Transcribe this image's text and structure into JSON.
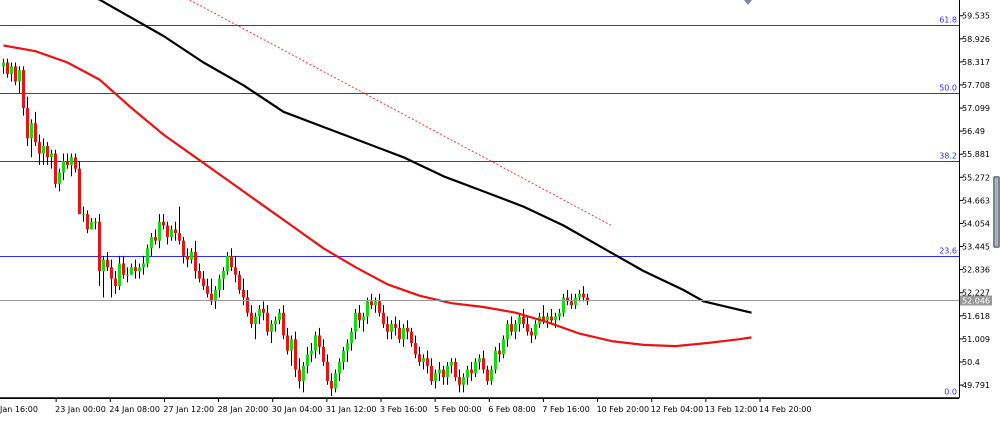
{
  "chart_data": {
    "type": "candlestick",
    "price_axis": {
      "ticks": [
        59.535,
        58.926,
        58.317,
        57.708,
        57.099,
        56.49,
        55.881,
        55.272,
        54.663,
        54.054,
        53.445,
        52.836,
        52.227,
        51.618,
        51.009,
        50.4,
        49.791
      ],
      "range": [
        49.45,
        59.95
      ],
      "current_price": 52.046,
      "current_price_label": "52.046"
    },
    "time_axis": {
      "labels": [
        "Jan 16:00",
        "23 Jan 00:00",
        "24 Jan 08:00",
        "27 Jan 12:00",
        "28 Jan 20:00",
        "30 Jan 04:00",
        "31 Jan 12:00",
        "3 Feb 16:00",
        "5 Feb 00:00",
        "6 Feb 08:00",
        "7 Feb 16:00",
        "10 Feb 20:00",
        "12 Feb 04:00",
        "13 Feb 12:00",
        "14 Feb 20:00"
      ]
    },
    "fibonacci_levels": [
      {
        "label": "61.8",
        "value": 59.3
      },
      {
        "label": "50.0",
        "value": 57.5
      },
      {
        "label": "38.2",
        "value": 55.7
      },
      {
        "label": "23.6",
        "value": 53.2
      },
      {
        "label": "0.0",
        "value": 49.47
      }
    ],
    "trendline": {
      "from_index": 43,
      "from_price": 60.15,
      "to_index": 152,
      "to_price": 54.0
    },
    "candles": [
      [
        58.2,
        58.4,
        58.0,
        58.3
      ],
      [
        58.3,
        58.4,
        57.9,
        58.0
      ],
      [
        58.0,
        58.3,
        57.8,
        58.2
      ],
      [
        58.2,
        58.3,
        57.7,
        57.8
      ],
      [
        57.8,
        58.2,
        57.5,
        58.1
      ],
      [
        58.1,
        58.2,
        56.9,
        57.1
      ],
      [
        57.1,
        57.4,
        56.1,
        56.3
      ],
      [
        56.3,
        56.8,
        55.8,
        56.7
      ],
      [
        56.7,
        57.0,
        56.1,
        56.2
      ],
      [
        56.2,
        56.4,
        55.6,
        55.9
      ],
      [
        55.9,
        56.3,
        55.6,
        56.1
      ],
      [
        56.1,
        56.2,
        55.6,
        55.8
      ],
      [
        55.8,
        56.0,
        55.5,
        55.9
      ],
      [
        55.9,
        56.0,
        55.0,
        55.1
      ],
      [
        55.1,
        55.5,
        54.9,
        55.4
      ],
      [
        55.4,
        55.9,
        55.2,
        55.7
      ],
      [
        55.7,
        55.9,
        55.5,
        55.6
      ],
      [
        55.6,
        55.9,
        55.3,
        55.8
      ],
      [
        55.8,
        55.9,
        55.4,
        55.5
      ],
      [
        55.5,
        55.7,
        54.3,
        54.3
      ],
      [
        54.3,
        54.5,
        54.1,
        54.3
      ],
      [
        54.3,
        54.4,
        53.8,
        53.9
      ],
      [
        53.9,
        54.2,
        53.9,
        54.1
      ],
      [
        54.1,
        54.2,
        53.9,
        54.1
      ],
      [
        54.1,
        54.3,
        52.4,
        52.8
      ],
      [
        52.8,
        53.2,
        52.1,
        53.1
      ],
      [
        53.1,
        53.3,
        52.8,
        52.9
      ],
      [
        52.9,
        53.1,
        52.1,
        52.6
      ],
      [
        52.6,
        52.8,
        52.2,
        52.4
      ],
      [
        52.4,
        53.2,
        52.3,
        53.0
      ],
      [
        53.0,
        53.2,
        52.6,
        52.7
      ],
      [
        52.7,
        52.9,
        52.5,
        52.7
      ],
      [
        52.7,
        53.0,
        52.7,
        52.9
      ],
      [
        52.9,
        53.1,
        52.6,
        52.8
      ],
      [
        52.8,
        53.0,
        52.6,
        52.9
      ],
      [
        52.9,
        53.2,
        52.7,
        53.0
      ],
      [
        53.0,
        53.5,
        52.9,
        53.4
      ],
      [
        53.4,
        53.8,
        53.2,
        53.7
      ],
      [
        53.7,
        53.9,
        53.5,
        53.6
      ],
      [
        53.6,
        54.3,
        53.4,
        54.1
      ],
      [
        54.1,
        54.3,
        53.9,
        54.0
      ],
      [
        54.0,
        54.1,
        53.5,
        53.7
      ],
      [
        53.7,
        54.0,
        53.6,
        53.9
      ],
      [
        53.9,
        54.1,
        53.6,
        53.8
      ],
      [
        53.8,
        54.5,
        53.5,
        53.6
      ],
      [
        53.6,
        53.7,
        53.0,
        53.2
      ],
      [
        53.2,
        53.4,
        52.9,
        53.1
      ],
      [
        53.1,
        53.4,
        53.0,
        53.3
      ],
      [
        53.3,
        53.6,
        52.6,
        52.8
      ],
      [
        52.8,
        53.0,
        52.5,
        52.6
      ],
      [
        52.6,
        52.8,
        52.3,
        52.4
      ],
      [
        52.4,
        52.6,
        52.1,
        52.2
      ],
      [
        52.2,
        52.6,
        51.9,
        52.0
      ],
      [
        52.0,
        52.4,
        51.8,
        52.3
      ],
      [
        52.3,
        52.7,
        52.1,
        52.6
      ],
      [
        52.6,
        52.9,
        52.3,
        52.8
      ],
      [
        52.8,
        53.3,
        52.7,
        53.2
      ],
      [
        53.2,
        53.4,
        52.8,
        52.9
      ],
      [
        52.9,
        53.2,
        52.5,
        52.7
      ],
      [
        52.7,
        52.8,
        52.2,
        52.3
      ],
      [
        52.3,
        52.6,
        51.9,
        52.1
      ],
      [
        52.1,
        52.3,
        51.6,
        51.7
      ],
      [
        51.7,
        51.9,
        51.3,
        51.4
      ],
      [
        51.4,
        51.7,
        51.0,
        51.6
      ],
      [
        51.6,
        51.9,
        51.4,
        51.8
      ],
      [
        51.8,
        52.0,
        51.5,
        51.7
      ],
      [
        51.7,
        51.9,
        51.1,
        51.2
      ],
      [
        51.2,
        51.5,
        50.9,
        51.4
      ],
      [
        51.4,
        51.6,
        51.2,
        51.5
      ],
      [
        51.5,
        51.8,
        51.4,
        51.7
      ],
      [
        51.7,
        51.9,
        51.0,
        51.1
      ],
      [
        51.1,
        51.3,
        50.6,
        50.7
      ],
      [
        50.7,
        51.1,
        50.3,
        51.0
      ],
      [
        51.0,
        51.2,
        50.0,
        50.2
      ],
      [
        50.2,
        50.5,
        49.7,
        49.9
      ],
      [
        49.9,
        50.4,
        49.6,
        50.3
      ],
      [
        50.3,
        50.8,
        50.1,
        50.6
      ],
      [
        50.6,
        50.9,
        50.4,
        50.7
      ],
      [
        50.7,
        51.2,
        50.5,
        51.1
      ],
      [
        51.1,
        51.3,
        50.6,
        50.8
      ],
      [
        50.8,
        51.0,
        50.3,
        50.4
      ],
      [
        50.4,
        50.6,
        49.8,
        49.9
      ],
      [
        49.9,
        50.1,
        49.5,
        49.7
      ],
      [
        49.7,
        50.2,
        49.6,
        50.1
      ],
      [
        50.1,
        50.5,
        49.9,
        50.4
      ],
      [
        50.4,
        50.8,
        50.2,
        50.7
      ],
      [
        50.7,
        51.0,
        50.4,
        50.9
      ],
      [
        50.9,
        51.3,
        50.7,
        51.2
      ],
      [
        51.2,
        51.8,
        51.0,
        51.7
      ],
      [
        51.7,
        51.9,
        51.3,
        51.5
      ],
      [
        51.5,
        51.7,
        51.2,
        51.6
      ],
      [
        51.6,
        52.1,
        51.4,
        52.0
      ],
      [
        52.0,
        52.2,
        51.8,
        51.9
      ],
      [
        51.9,
        52.1,
        51.7,
        52.0
      ],
      [
        52.0,
        52.2,
        51.6,
        51.7
      ],
      [
        51.7,
        51.9,
        51.3,
        51.4
      ],
      [
        51.4,
        51.6,
        51.0,
        51.2
      ],
      [
        51.2,
        51.5,
        51.0,
        51.4
      ],
      [
        51.4,
        51.6,
        51.1,
        51.3
      ],
      [
        51.3,
        51.5,
        50.9,
        51.0
      ],
      [
        51.0,
        51.4,
        50.8,
        51.3
      ],
      [
        51.3,
        51.5,
        51.0,
        51.2
      ],
      [
        51.2,
        51.3,
        50.8,
        50.9
      ],
      [
        50.9,
        51.1,
        50.5,
        50.6
      ],
      [
        50.6,
        50.8,
        50.3,
        50.4
      ],
      [
        50.4,
        50.6,
        50.2,
        50.5
      ],
      [
        50.5,
        50.7,
        50.1,
        50.3
      ],
      [
        50.3,
        50.5,
        49.8,
        49.9
      ],
      [
        49.9,
        50.2,
        49.7,
        50.1
      ],
      [
        50.1,
        50.4,
        49.9,
        50.2
      ],
      [
        50.2,
        50.3,
        49.8,
        50.0
      ],
      [
        50.0,
        50.4,
        49.8,
        50.3
      ],
      [
        50.3,
        50.5,
        50.1,
        50.4
      ],
      [
        50.4,
        50.5,
        49.9,
        50.0
      ],
      [
        50.0,
        50.2,
        49.6,
        49.8
      ],
      [
        49.8,
        50.1,
        49.6,
        50.0
      ],
      [
        50.0,
        50.3,
        49.8,
        50.2
      ],
      [
        50.2,
        50.4,
        49.9,
        50.1
      ],
      [
        50.1,
        50.5,
        50.0,
        50.4
      ],
      [
        50.4,
        50.6,
        50.2,
        50.5
      ],
      [
        50.5,
        50.7,
        50.1,
        50.2
      ],
      [
        50.2,
        50.3,
        49.8,
        49.9
      ],
      [
        49.9,
        50.3,
        49.8,
        50.2
      ],
      [
        50.2,
        50.8,
        50.1,
        50.7
      ],
      [
        50.7,
        50.9,
        50.4,
        50.6
      ],
      [
        50.6,
        51.1,
        50.5,
        51.0
      ],
      [
        51.0,
        51.5,
        50.8,
        51.4
      ],
      [
        51.4,
        51.6,
        51.1,
        51.2
      ],
      [
        51.2,
        51.5,
        51.0,
        51.4
      ],
      [
        51.4,
        51.7,
        51.2,
        51.6
      ],
      [
        51.6,
        51.8,
        51.3,
        51.4
      ],
      [
        51.4,
        51.6,
        51.1,
        51.2
      ],
      [
        51.2,
        51.3,
        50.9,
        51.1
      ],
      [
        51.1,
        51.5,
        51.0,
        51.4
      ],
      [
        51.4,
        51.7,
        51.3,
        51.6
      ],
      [
        51.6,
        51.9,
        51.4,
        51.5
      ],
      [
        51.5,
        51.7,
        51.3,
        51.6
      ],
      [
        51.6,
        51.8,
        51.4,
        51.5
      ],
      [
        51.5,
        51.7,
        51.3,
        51.6
      ],
      [
        51.6,
        51.8,
        51.5,
        51.7
      ],
      [
        51.7,
        52.2,
        51.6,
        52.1
      ],
      [
        52.1,
        52.3,
        51.9,
        52.0
      ],
      [
        52.0,
        52.2,
        51.8,
        51.9
      ],
      [
        51.9,
        52.2,
        51.8,
        52.1
      ],
      [
        52.1,
        52.3,
        52.0,
        52.2
      ],
      [
        52.2,
        52.4,
        52.0,
        52.1
      ],
      [
        52.1,
        52.2,
        51.9,
        52.0
      ]
    ],
    "moving_averages": [
      {
        "color": "#000000",
        "points": [
          [
            14,
            60.5
          ],
          [
            20,
            60.2
          ],
          [
            30,
            59.6
          ],
          [
            40,
            59.0
          ],
          [
            50,
            58.3
          ],
          [
            60,
            57.7
          ],
          [
            70,
            57.0
          ],
          [
            80,
            56.6
          ],
          [
            90,
            56.2
          ],
          [
            100,
            55.8
          ],
          [
            110,
            55.3
          ],
          [
            120,
            54.9
          ],
          [
            130,
            54.5
          ],
          [
            140,
            54.0
          ],
          [
            150,
            53.4
          ],
          [
            160,
            52.8
          ],
          [
            170,
            52.3
          ],
          [
            175,
            52.0
          ],
          [
            187,
            51.7
          ]
        ]
      },
      {
        "color": "#ee1111",
        "points": [
          [
            0,
            58.75
          ],
          [
            8,
            58.6
          ],
          [
            16,
            58.3
          ],
          [
            24,
            57.85
          ],
          [
            32,
            57.1
          ],
          [
            40,
            56.4
          ],
          [
            48,
            55.8
          ],
          [
            56,
            55.2
          ],
          [
            64,
            54.6
          ],
          [
            72,
            54.0
          ],
          [
            80,
            53.4
          ],
          [
            88,
            52.9
          ],
          [
            96,
            52.45
          ],
          [
            104,
            52.15
          ],
          [
            112,
            51.95
          ],
          [
            120,
            51.85
          ],
          [
            128,
            51.7
          ],
          [
            136,
            51.45
          ],
          [
            144,
            51.15
          ],
          [
            152,
            50.95
          ],
          [
            160,
            50.85
          ],
          [
            168,
            50.82
          ],
          [
            176,
            50.9
          ],
          [
            184,
            51.0
          ],
          [
            187,
            51.05
          ]
        ]
      }
    ]
  }
}
